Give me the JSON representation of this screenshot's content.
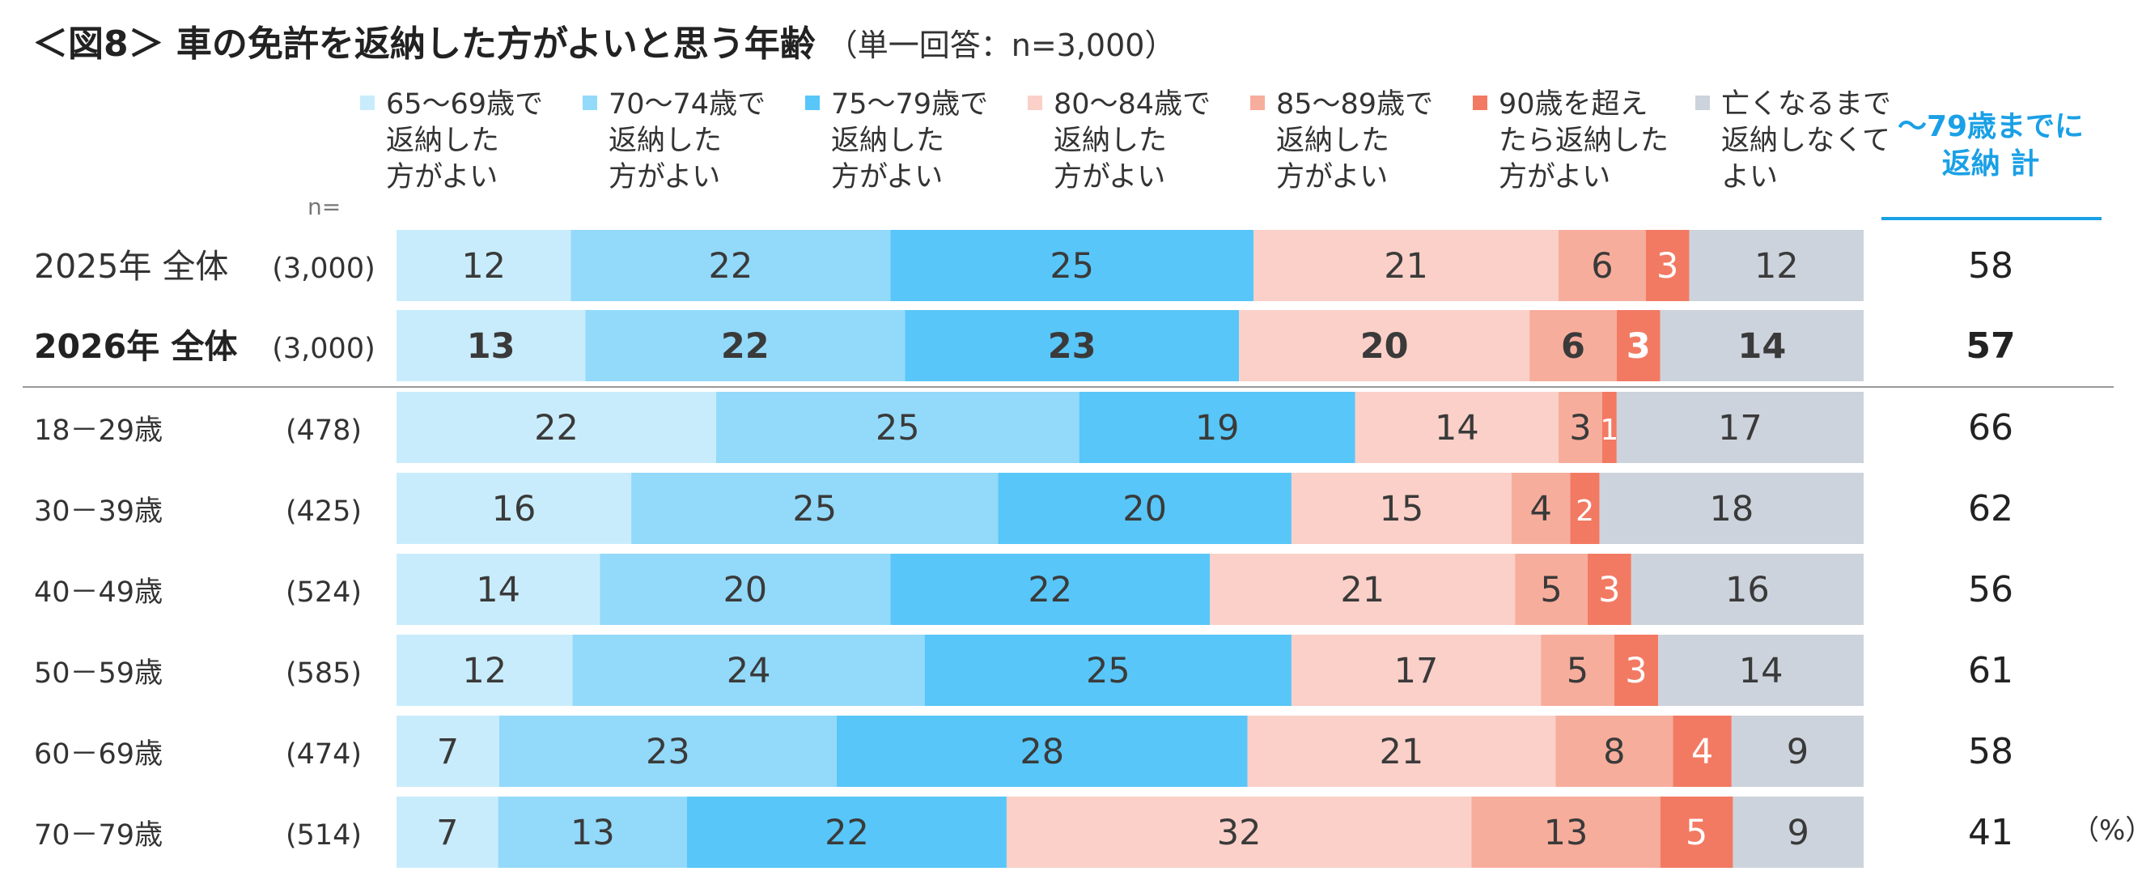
{
  "title": "＜図8＞ 車の免許を返納した方がよいと思う年齢",
  "title_note": "（単一回答：n=3,000）",
  "n_label": "n=",
  "unit_label": "（%）",
  "total_header": [
    "～79歳までに",
    "返納 計"
  ],
  "colors": {
    "accent": "#1aa0e6",
    "s1": "#c9ecfc",
    "s2": "#93d9fa",
    "s3": "#58c6f8",
    "s4": "#fbd0c8",
    "s5": "#f7ad9c",
    "s6": "#f27a63",
    "s7": "#cdd3dc"
  },
  "chart_data": {
    "type": "bar",
    "orientation": "horizontal",
    "stacked": true,
    "percent": true,
    "unit": "%",
    "series": [
      {
        "name": [
          "65～69歳で",
          "返納した",
          "方がよい"
        ],
        "values": [
          12,
          13,
          22,
          16,
          14,
          12,
          7,
          7
        ]
      },
      {
        "name": [
          "70～74歳で",
          "返納した",
          "方がよい"
        ],
        "values": [
          22,
          22,
          25,
          25,
          20,
          24,
          23,
          13
        ]
      },
      {
        "name": [
          "75～79歳で",
          "返納した",
          "方がよい"
        ],
        "values": [
          25,
          23,
          19,
          20,
          22,
          25,
          28,
          22
        ]
      },
      {
        "name": [
          "80～84歳で",
          "返納した",
          "方がよい"
        ],
        "values": [
          21,
          20,
          14,
          15,
          21,
          17,
          21,
          32
        ]
      },
      {
        "name": [
          "85～89歳で",
          "返納した",
          "方がよい"
        ],
        "values": [
          6,
          6,
          3,
          4,
          5,
          5,
          8,
          13
        ]
      },
      {
        "name": [
          "90歳を超え",
          "たら返納した",
          "方がよい"
        ],
        "values": [
          3,
          3,
          1,
          2,
          3,
          3,
          4,
          5
        ]
      },
      {
        "name": [
          "亡くなるまで",
          "返納しなくて",
          "よい"
        ],
        "values": [
          12,
          14,
          17,
          18,
          16,
          14,
          9,
          9
        ]
      }
    ],
    "rows": [
      {
        "label": "2025年 全体",
        "n": "(3,000)",
        "total": 58,
        "bold": false
      },
      {
        "label": "2026年 全体",
        "n": "(3,000)",
        "total": 57,
        "bold": true
      },
      {
        "label": "18－29歳",
        "n": "(478)",
        "total": 66,
        "bold": false
      },
      {
        "label": "30－39歳",
        "n": "(425)",
        "total": 62,
        "bold": false
      },
      {
        "label": "40－49歳",
        "n": "(524)",
        "total": 56,
        "bold": false
      },
      {
        "label": "50－59歳",
        "n": "(585)",
        "total": 61,
        "bold": false
      },
      {
        "label": "60－69歳",
        "n": "(474)",
        "total": 58,
        "bold": false
      },
      {
        "label": "70－79歳",
        "n": "(514)",
        "total": 41,
        "bold": false
      }
    ]
  }
}
